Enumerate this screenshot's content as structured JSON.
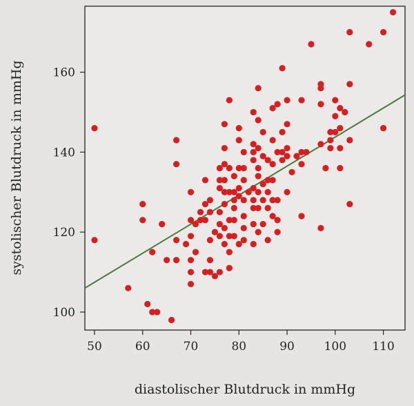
{
  "chart_data": {
    "type": "scatter",
    "title": "",
    "xlabel": "diastolischer Blutdruck in mmHg",
    "ylabel": "systolischer Blutdruck in mmHg",
    "xlim": [
      48,
      114.5
    ],
    "ylim": [
      95.5,
      176.5
    ],
    "xticks": [
      50,
      60,
      70,
      80,
      90,
      100,
      110
    ],
    "yticks": [
      100,
      120,
      140,
      160
    ],
    "grid": false,
    "colors": {
      "points": "#d42020",
      "fit_line": "#4a7a38"
    },
    "regression_line": {
      "x": [
        48,
        114.5
      ],
      "y": [
        106,
        154.3
      ]
    },
    "points": [
      [
        50,
        146
      ],
      [
        50,
        118
      ],
      [
        57,
        106
      ],
      [
        60,
        127
      ],
      [
        60,
        123
      ],
      [
        61,
        102
      ],
      [
        62,
        115
      ],
      [
        62,
        100
      ],
      [
        63,
        100
      ],
      [
        64,
        122
      ],
      [
        65,
        113
      ],
      [
        66,
        98
      ],
      [
        67,
        143
      ],
      [
        67,
        137
      ],
      [
        67,
        118
      ],
      [
        67,
        113
      ],
      [
        69,
        117
      ],
      [
        70,
        130
      ],
      [
        70,
        123
      ],
      [
        70,
        119
      ],
      [
        70,
        113
      ],
      [
        70,
        110
      ],
      [
        70,
        107
      ],
      [
        71,
        122
      ],
      [
        71,
        115
      ],
      [
        72,
        125
      ],
      [
        72,
        123
      ],
      [
        73,
        133
      ],
      [
        73,
        127
      ],
      [
        73,
        123
      ],
      [
        73,
        110
      ],
      [
        74,
        128
      ],
      [
        74,
        125
      ],
      [
        74,
        118
      ],
      [
        74,
        113
      ],
      [
        74,
        110
      ],
      [
        75,
        120
      ],
      [
        75,
        109
      ],
      [
        76,
        136
      ],
      [
        76,
        133
      ],
      [
        76,
        131
      ],
      [
        76,
        125
      ],
      [
        76,
        122
      ],
      [
        76,
        119
      ],
      [
        76,
        110
      ],
      [
        77,
        147
      ],
      [
        77,
        141
      ],
      [
        77,
        137
      ],
      [
        77,
        133
      ],
      [
        77,
        130
      ],
      [
        77,
        127
      ],
      [
        77,
        121
      ],
      [
        77,
        117
      ],
      [
        78,
        153
      ],
      [
        78,
        136
      ],
      [
        78,
        130
      ],
      [
        78,
        123
      ],
      [
        78,
        119
      ],
      [
        78,
        115
      ],
      [
        78,
        111
      ],
      [
        79,
        134
      ],
      [
        79,
        130
      ],
      [
        79,
        128
      ],
      [
        79,
        126
      ],
      [
        79,
        123
      ],
      [
        79,
        119
      ],
      [
        80,
        146
      ],
      [
        80,
        143
      ],
      [
        80,
        136
      ],
      [
        80,
        131
      ],
      [
        80,
        129
      ],
      [
        80,
        117
      ],
      [
        81,
        140
      ],
      [
        81,
        136
      ],
      [
        81,
        133
      ],
      [
        81,
        128
      ],
      [
        81,
        124
      ],
      [
        81,
        121
      ],
      [
        81,
        118
      ],
      [
        82,
        130
      ],
      [
        83,
        150
      ],
      [
        83,
        142
      ],
      [
        83,
        140
      ],
      [
        83,
        138
      ],
      [
        83,
        131
      ],
      [
        83,
        128
      ],
      [
        83,
        126
      ],
      [
        83,
        122
      ],
      [
        83,
        117
      ],
      [
        84,
        156
      ],
      [
        84,
        148
      ],
      [
        84,
        141
      ],
      [
        84,
        136
      ],
      [
        84,
        134
      ],
      [
        84,
        130
      ],
      [
        84,
        126
      ],
      [
        84,
        120
      ],
      [
        85,
        145
      ],
      [
        85,
        139
      ],
      [
        85,
        132
      ],
      [
        85,
        128
      ],
      [
        85,
        122
      ],
      [
        86,
        138
      ],
      [
        86,
        133
      ],
      [
        86,
        130
      ],
      [
        86,
        126
      ],
      [
        86,
        118
      ],
      [
        87,
        151
      ],
      [
        87,
        143
      ],
      [
        87,
        137
      ],
      [
        87,
        133
      ],
      [
        87,
        128
      ],
      [
        87,
        124
      ],
      [
        88,
        152
      ],
      [
        88,
        140
      ],
      [
        88,
        128
      ],
      [
        88,
        123
      ],
      [
        88,
        120
      ],
      [
        89,
        161
      ],
      [
        89,
        145
      ],
      [
        89,
        140
      ],
      [
        89,
        138
      ],
      [
        90,
        153
      ],
      [
        90,
        147
      ],
      [
        90,
        141
      ],
      [
        90,
        139
      ],
      [
        90,
        130
      ],
      [
        91,
        135
      ],
      [
        92,
        139
      ],
      [
        93,
        153
      ],
      [
        93,
        140
      ],
      [
        93,
        137
      ],
      [
        93,
        124
      ],
      [
        94,
        140
      ],
      [
        95,
        167
      ],
      [
        97,
        157
      ],
      [
        97,
        156
      ],
      [
        97,
        152
      ],
      [
        97,
        142
      ],
      [
        97,
        121
      ],
      [
        98,
        136
      ],
      [
        99,
        145
      ],
      [
        99,
        143
      ],
      [
        99,
        141
      ],
      [
        100,
        153
      ],
      [
        100,
        149
      ],
      [
        100,
        145
      ],
      [
        101,
        151
      ],
      [
        101,
        146
      ],
      [
        101,
        141
      ],
      [
        101,
        136
      ],
      [
        102,
        150
      ],
      [
        103,
        170
      ],
      [
        103,
        157
      ],
      [
        103,
        143
      ],
      [
        103,
        127
      ],
      [
        107,
        167
      ],
      [
        110,
        170
      ],
      [
        110,
        146
      ],
      [
        112,
        175
      ]
    ]
  }
}
